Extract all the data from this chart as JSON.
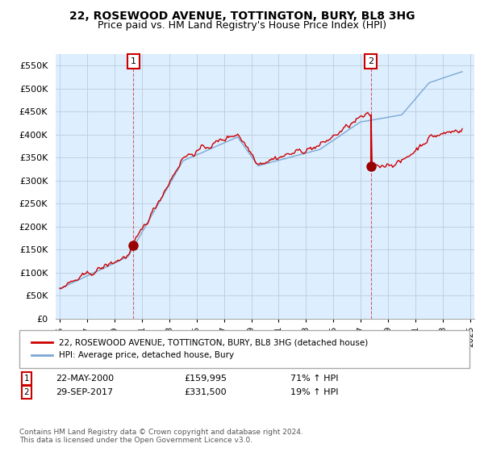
{
  "title": "22, ROSEWOOD AVENUE, TOTTINGTON, BURY, BL8 3HG",
  "subtitle": "Price paid vs. HM Land Registry's House Price Index (HPI)",
  "title_fontsize": 10,
  "subtitle_fontsize": 9,
  "legend_line1": "22, ROSEWOOD AVENUE, TOTTINGTON, BURY, BL8 3HG (detached house)",
  "legend_line2": "HPI: Average price, detached house, Bury",
  "annotation1": {
    "label": "1",
    "date": "22-MAY-2000",
    "price": "£159,995",
    "hpi": "71% ↑ HPI"
  },
  "annotation2": {
    "label": "2",
    "date": "29-SEP-2017",
    "price": "£331,500",
    "hpi": "19% ↑ HPI"
  },
  "footer": "Contains HM Land Registry data © Crown copyright and database right 2024.\nThis data is licensed under the Open Government Licence v3.0.",
  "ylim": [
    0,
    575000
  ],
  "yticks": [
    0,
    50000,
    100000,
    150000,
    200000,
    250000,
    300000,
    350000,
    400000,
    450000,
    500000,
    550000
  ],
  "red_line_color": "#cc0000",
  "blue_line_color": "#7aa8d2",
  "marker_color": "#990000",
  "sale1_x": 2000.38,
  "sale1_y": 159995,
  "sale2_x": 2017.75,
  "sale2_y": 331500,
  "background_color": "#ffffff",
  "plot_bg_color": "#ddeeff",
  "grid_color": "#bbccdd",
  "xticks": [
    1995,
    1997,
    1999,
    2001,
    2003,
    2005,
    2007,
    2009,
    2011,
    2013,
    2015,
    2017,
    2019,
    2021,
    2023,
    2025
  ],
  "xlim": [
    1994.7,
    2025.3
  ]
}
